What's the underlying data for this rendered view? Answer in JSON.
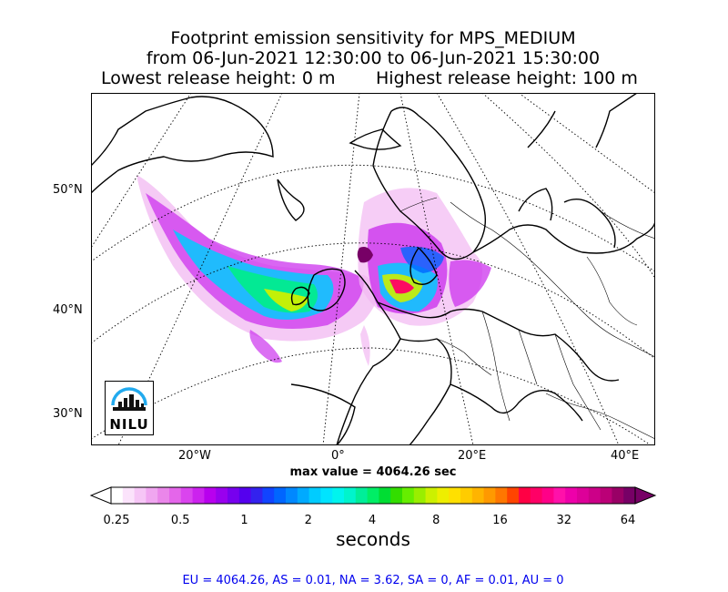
{
  "title": {
    "line1": "Footprint emission sensitivity for MPS_MEDIUM",
    "line2": "from 06-Jun-2021 12:30:00 to 06-Jun-2021 15:30:00",
    "line3_left": "Lowest release height: 0 m",
    "line3_right": "Highest release height: 100 m"
  },
  "map": {
    "lat_labels": [
      "50°N",
      "40°N",
      "30°N"
    ],
    "lon_labels": [
      "20°W",
      "0°",
      "20°E",
      "40°E"
    ],
    "logo_text": "NILU",
    "max_value_label": "max value = 4064.26 sec"
  },
  "colorbar": {
    "ticks": [
      "0.25",
      "0.5",
      "1",
      "2",
      "4",
      "8",
      "16",
      "32",
      "64"
    ],
    "unit": "seconds",
    "colors": [
      "#ffffff",
      "#fbe3fb",
      "#f6c6f6",
      "#f0a6f0",
      "#ea86ea",
      "#e466ea",
      "#da44ee",
      "#cc22ee",
      "#b800ee",
      "#9900ee",
      "#7700ee",
      "#5500ee",
      "#3322ee",
      "#1144ff",
      "#0066ff",
      "#0088ff",
      "#00aaff",
      "#00ccff",
      "#00e4ff",
      "#00f4ee",
      "#00f4cc",
      "#00ee99",
      "#00ee66",
      "#00dd33",
      "#33dd00",
      "#66ee00",
      "#99ee00",
      "#ccf000",
      "#eeee00",
      "#ffe000",
      "#ffcc00",
      "#ffb400",
      "#ff9900",
      "#ff7700",
      "#ff4400",
      "#ff0044",
      "#ff0066",
      "#ff0088",
      "#ff11aa",
      "#ee00aa",
      "#dd0099",
      "#cc0088",
      "#bb0077",
      "#990066",
      "#770066"
    ]
  },
  "footer": "EU = 4064.26,  AS = 0.01,  NA = 3.62,  SA = 0,  AF = 0.01,  AU = 0"
}
